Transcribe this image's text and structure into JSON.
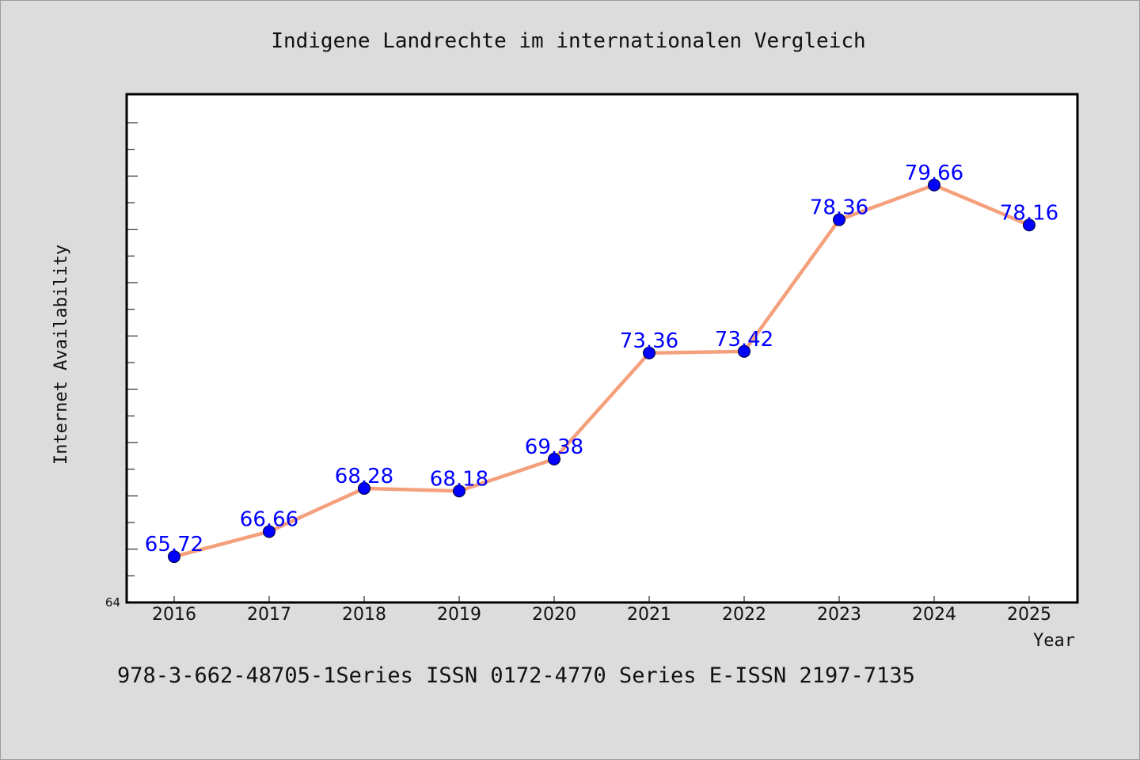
{
  "colors": {
    "background": "#dcdcdc",
    "plot_background": "#ffffff",
    "line": "#f4a07c",
    "marker": "#0000ff",
    "data_label": "#0000ff"
  },
  "footer": {
    "text": "978-3-662-48705-1Series ISSN 0172-4770 Series E-ISSN 2197-7135"
  },
  "chart_data": {
    "type": "line",
    "title": "Indigene Landrechte im internationalen Vergleich",
    "xlabel": "Year",
    "ylabel": "Internet Availability",
    "x": [
      "2016",
      "2017",
      "2018",
      "2019",
      "2020",
      "2021",
      "2022",
      "2023",
      "2024",
      "2025"
    ],
    "series": [
      {
        "values": [
          65.72,
          66.66,
          68.28,
          68.18,
          69.38,
          73.36,
          73.42,
          78.36,
          79.66,
          78.16
        ]
      }
    ],
    "data_labels": [
      "65.72",
      "66.66",
      "68.28",
      "68.18",
      "69.38",
      "73.36",
      "73.42",
      "78.36",
      "79.66",
      "78.16"
    ],
    "ylim": [
      64,
      82
    ],
    "y_tick_labels": [
      "64"
    ],
    "grid": false,
    "legend": "none"
  }
}
